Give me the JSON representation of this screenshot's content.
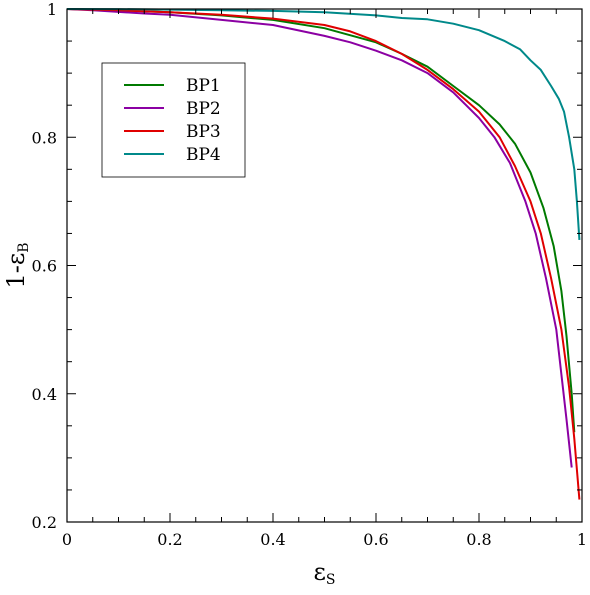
{
  "chart_data": {
    "type": "line",
    "title": "",
    "xlabel": "ε",
    "xlabel_sub": "S",
    "ylabel": "1-ε",
    "ylabel_sub": "B",
    "xlim": [
      0,
      1
    ],
    "ylim": [
      0.2,
      1
    ],
    "xticks": [
      0,
      0.2,
      0.4,
      0.6,
      0.8,
      1
    ],
    "xtick_labels": [
      "0",
      "0.2",
      "0.4",
      "0.6",
      "0.8",
      "1"
    ],
    "yticks": [
      0.2,
      0.4,
      0.6,
      0.8,
      1
    ],
    "ytick_labels": [
      "0.2",
      "0.4",
      "0.6",
      "0.8",
      "1"
    ],
    "grid": false,
    "legend_position": "upper-left",
    "series": [
      {
        "name": "BP1",
        "color": "#007a00",
        "x": [
          0,
          0.05,
          0.1,
          0.2,
          0.3,
          0.4,
          0.5,
          0.6,
          0.65,
          0.7,
          0.75,
          0.8,
          0.84,
          0.87,
          0.9,
          0.925,
          0.945,
          0.96,
          0.97,
          0.98,
          0.985
        ],
        "y": [
          1.0,
          0.999,
          0.998,
          0.995,
          0.99,
          0.983,
          0.97,
          0.948,
          0.93,
          0.91,
          0.88,
          0.85,
          0.82,
          0.79,
          0.745,
          0.69,
          0.63,
          0.56,
          0.49,
          0.4,
          0.34
        ]
      },
      {
        "name": "BP2",
        "color": "#8b00a3",
        "x": [
          0,
          0.05,
          0.15,
          0.2,
          0.3,
          0.4,
          0.5,
          0.55,
          0.6,
          0.65,
          0.7,
          0.75,
          0.8,
          0.83,
          0.86,
          0.89,
          0.91,
          0.93,
          0.95,
          0.96,
          0.97,
          0.98
        ],
        "y": [
          1.0,
          0.998,
          0.993,
          0.991,
          0.983,
          0.975,
          0.958,
          0.948,
          0.935,
          0.92,
          0.9,
          0.87,
          0.83,
          0.8,
          0.76,
          0.7,
          0.65,
          0.58,
          0.5,
          0.43,
          0.36,
          0.285
        ]
      },
      {
        "name": "BP3",
        "color": "#e00000",
        "x": [
          0,
          0.1,
          0.2,
          0.3,
          0.4,
          0.5,
          0.55,
          0.6,
          0.65,
          0.7,
          0.75,
          0.8,
          0.84,
          0.87,
          0.9,
          0.92,
          0.94,
          0.96,
          0.975,
          0.985,
          0.995
        ],
        "y": [
          1.0,
          0.998,
          0.995,
          0.991,
          0.985,
          0.975,
          0.965,
          0.95,
          0.93,
          0.905,
          0.875,
          0.84,
          0.8,
          0.755,
          0.7,
          0.65,
          0.58,
          0.5,
          0.41,
          0.33,
          0.235
        ]
      },
      {
        "name": "BP4",
        "color": "#00898a",
        "x": [
          0,
          0.1,
          0.2,
          0.3,
          0.4,
          0.5,
          0.6,
          0.65,
          0.7,
          0.75,
          0.8,
          0.85,
          0.88,
          0.9,
          0.92,
          0.94,
          0.955,
          0.965,
          0.975,
          0.985,
          0.99,
          0.995
        ],
        "y": [
          1.0,
          0.9998,
          0.999,
          0.998,
          0.997,
          0.995,
          0.99,
          0.986,
          0.984,
          0.977,
          0.967,
          0.95,
          0.937,
          0.92,
          0.905,
          0.88,
          0.86,
          0.84,
          0.8,
          0.75,
          0.7,
          0.64
        ]
      }
    ]
  }
}
